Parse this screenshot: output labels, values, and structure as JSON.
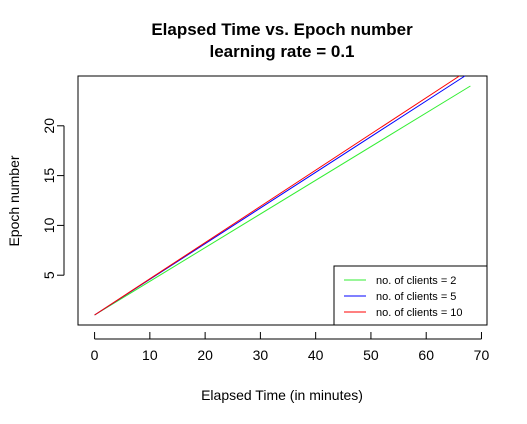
{
  "chart_data": {
    "type": "line",
    "title": "Elapsed Time vs. Epoch number",
    "subtitle": "learning rate = 0.1",
    "xlabel": "Elapsed Time (in minutes)",
    "ylabel": "Epoch number",
    "xlim": [
      -3,
      71
    ],
    "ylim": [
      0,
      25
    ],
    "x_ticks": [
      0,
      10,
      20,
      30,
      40,
      50,
      60,
      70
    ],
    "y_ticks": [
      5,
      10,
      15,
      20
    ],
    "grid": false,
    "legend_position": "bottom-right",
    "series": [
      {
        "name": "no. of clients = 2",
        "color": "#33ee33",
        "x": [
          0,
          68
        ],
        "y": [
          1,
          24
        ]
      },
      {
        "name": "no. of clients = 5",
        "color": "#0000ff",
        "x": [
          0,
          67
        ],
        "y": [
          1,
          25
        ]
      },
      {
        "name": "no. of clients = 10",
        "color": "#ff0000",
        "x": [
          0,
          66
        ],
        "y": [
          1,
          25
        ]
      }
    ]
  }
}
